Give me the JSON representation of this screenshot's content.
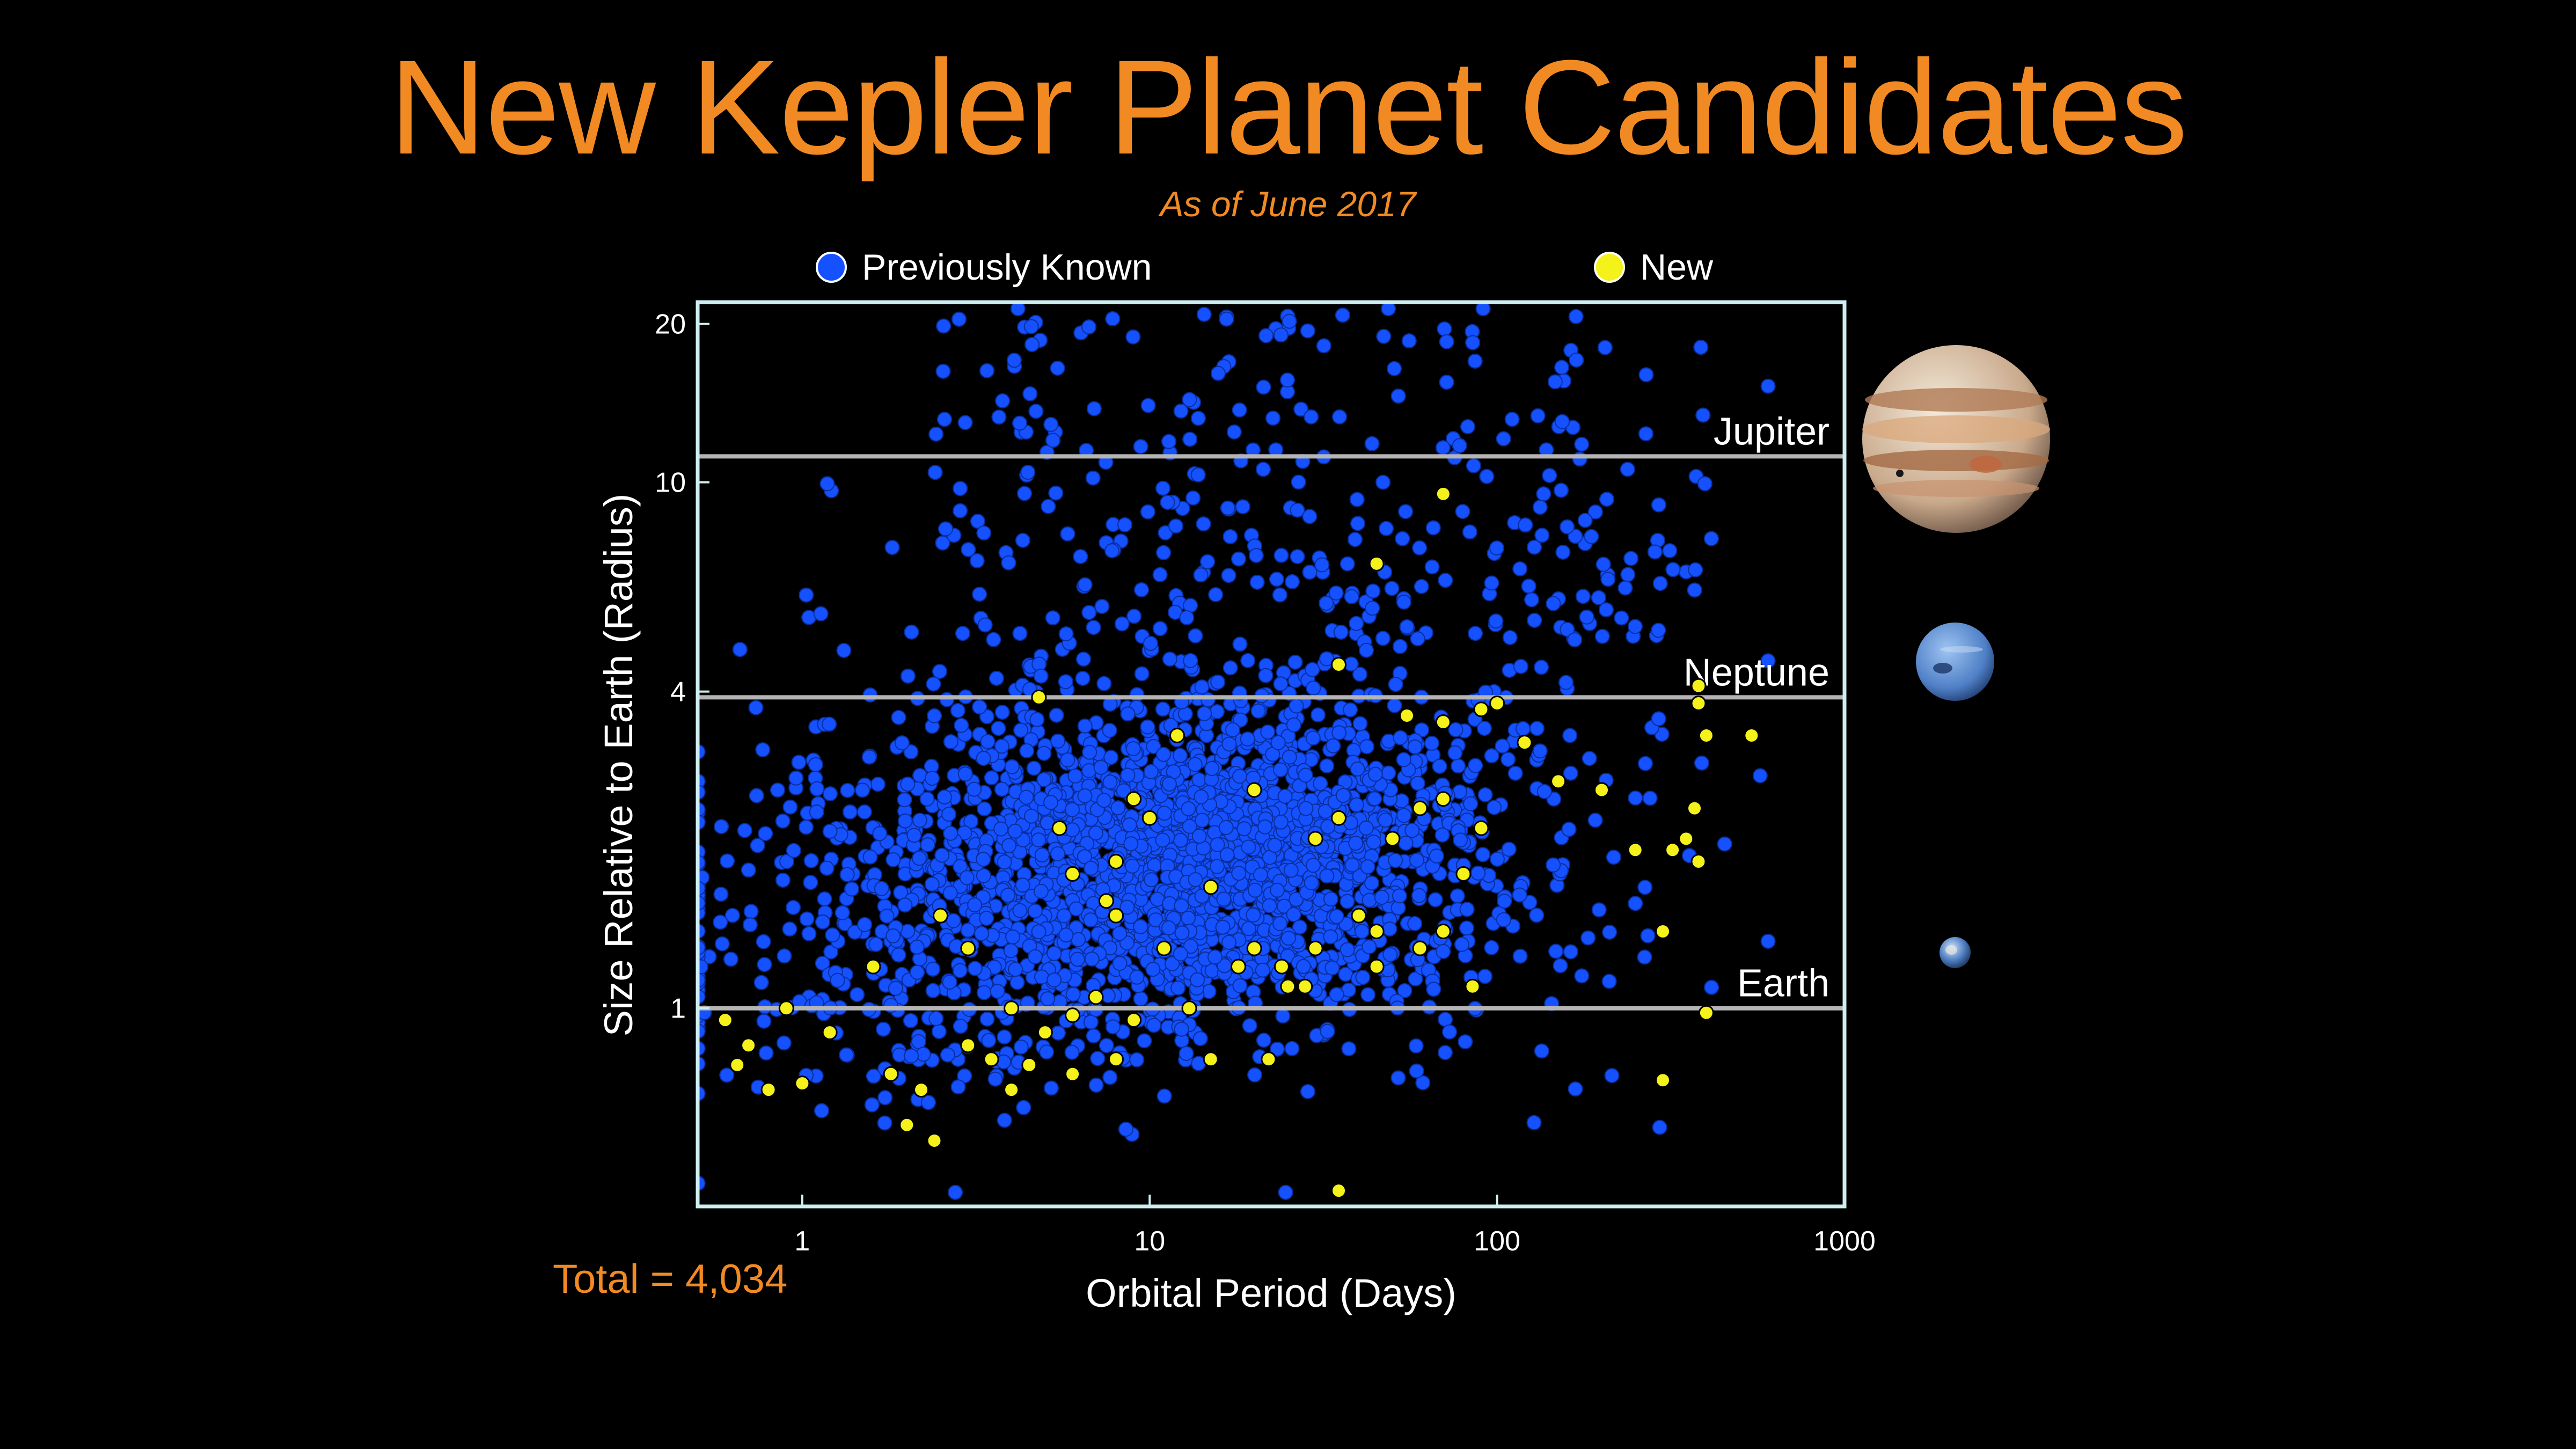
{
  "title": "New Kepler Planet Candidates",
  "subtitle": "As of June 2017",
  "legend": {
    "previous_label": "Previously Known",
    "new_label": "New",
    "previous_color": "#1551FF",
    "new_color": "#F4F21A"
  },
  "total_label": "Total = 4,034",
  "chart_data": {
    "type": "scatter",
    "xlabel": "Orbital Period (Days)",
    "ylabel": "Size Relative to Earth (Radius)",
    "x_scale": "log",
    "y_scale": "log",
    "xlim": [
      0.5,
      1000
    ],
    "ylim": [
      0.42,
      22
    ],
    "x_ticks": [
      1,
      10,
      100,
      1000
    ],
    "x_tick_labels": [
      "1",
      "10",
      "100",
      "1000"
    ],
    "y_ticks": [
      1,
      4,
      10,
      20
    ],
    "y_tick_labels": [
      "1",
      "4",
      "10",
      "20"
    ],
    "reference_lines": [
      {
        "label": "Jupiter",
        "y": 11.2
      },
      {
        "label": "Neptune",
        "y": 3.9
      },
      {
        "label": "Earth",
        "y": 1.0
      }
    ],
    "series": [
      {
        "name": "Previously Known",
        "color": "#1551FF",
        "count": 3815,
        "distribution": "dense cluster at periods 3–60 days and radii 1.2–3 Earth radii; sparse spread over periods 0.5–600 days and radii 0.45–20"
      },
      {
        "name": "New",
        "color": "#F4F21A",
        "count": 219,
        "points": [
          [
            4.8,
            3.9
          ],
          [
            12,
            3.3
          ],
          [
            9,
            2.5
          ],
          [
            20,
            2.6
          ],
          [
            6,
            1.8
          ],
          [
            8,
            1.5
          ],
          [
            11,
            1.3
          ],
          [
            18,
            1.2
          ],
          [
            7,
            1.05
          ],
          [
            5,
            0.9
          ],
          [
            3,
            0.85
          ],
          [
            2.2,
            0.7
          ],
          [
            1.8,
            0.75
          ],
          [
            0.8,
            0.7
          ],
          [
            0.7,
            0.85
          ],
          [
            0.6,
            0.95
          ],
          [
            1,
            0.72
          ],
          [
            2,
            0.6
          ],
          [
            2.4,
            0.56
          ],
          [
            3.5,
            0.8
          ],
          [
            4.5,
            0.78
          ],
          [
            6,
            0.75
          ],
          [
            8,
            0.8
          ],
          [
            15,
            0.8
          ],
          [
            22,
            0.8
          ],
          [
            35,
            0.45
          ],
          [
            25,
            1.1
          ],
          [
            30,
            1.3
          ],
          [
            45,
            1.2
          ],
          [
            60,
            1.3
          ],
          [
            70,
            1.4
          ],
          [
            80,
            1.8
          ],
          [
            90,
            2.2
          ],
          [
            70,
            2.5
          ],
          [
            60,
            2.4
          ],
          [
            50,
            2.1
          ],
          [
            100,
            3.8
          ],
          [
            120,
            3.2
          ],
          [
            150,
            2.7
          ],
          [
            200,
            2.6
          ],
          [
            250,
            2.0
          ],
          [
            300,
            1.4
          ],
          [
            320,
            2.0
          ],
          [
            350,
            2.1
          ],
          [
            370,
            2.4
          ],
          [
            380,
            1.9
          ],
          [
            400,
            3.3
          ],
          [
            540,
            3.3
          ],
          [
            380,
            3.8
          ],
          [
            380,
            4.1
          ],
          [
            400,
            0.98
          ],
          [
            300,
            0.73
          ],
          [
            85,
            1.1
          ],
          [
            45,
            1.4
          ],
          [
            35,
            2.3
          ],
          [
            15,
            1.7
          ],
          [
            10,
            2.3
          ],
          [
            3,
            1.3
          ],
          [
            2.5,
            1.5
          ],
          [
            4,
            1.0
          ],
          [
            13,
            1.0
          ],
          [
            28,
            1.1
          ],
          [
            70,
            3.5
          ],
          [
            55,
            3.6
          ],
          [
            90,
            3.7
          ],
          [
            35,
            4.5
          ],
          [
            45,
            7.0
          ],
          [
            70,
            9.5
          ],
          [
            6,
            0.97
          ],
          [
            9,
            0.95
          ],
          [
            4,
            0.7
          ],
          [
            1.2,
            0.9
          ],
          [
            0.9,
            1.0
          ],
          [
            0.65,
            0.78
          ],
          [
            1.6,
            1.2
          ],
          [
            20,
            1.3
          ],
          [
            24,
            1.2
          ],
          [
            40,
            1.5
          ],
          [
            30,
            2.1
          ],
          [
            8,
            1.9
          ],
          [
            5.5,
            2.2
          ],
          [
            7.5,
            1.6
          ]
        ]
      }
    ]
  }
}
